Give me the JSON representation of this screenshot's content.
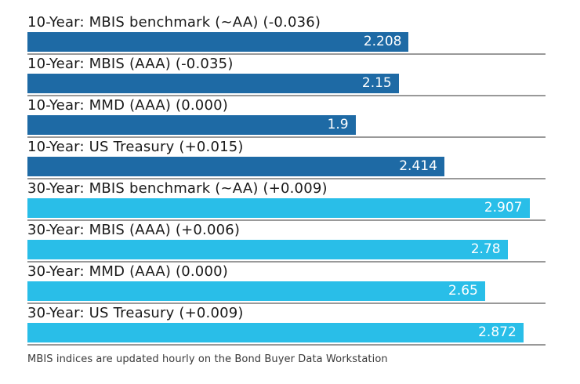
{
  "chart_data": {
    "type": "bar",
    "orientation": "horizontal",
    "title": "",
    "xlabel": "",
    "ylabel": "",
    "xlim": [
      0,
      3.0
    ],
    "grid": false,
    "legend": "none",
    "categories": [
      "10-Year: MBIS benchmark (~AA) (-0.036)",
      "10-Year: MBIS (AAA) (-0.035)",
      "10-Year: MMD (AAA) (0.000)",
      "10-Year: US Treasury (+0.015)",
      "30-Year: MBIS benchmark (~AA) (+0.009)",
      "30-Year: MBIS (AAA) (+0.006)",
      "30-Year: MMD (AAA) (0.000)",
      "30-Year: US Treasury (+0.009)"
    ],
    "values": [
      2.208,
      2.15,
      1.9,
      2.414,
      2.907,
      2.78,
      2.65,
      2.872
    ],
    "display_values": [
      "2.208",
      "2.15",
      "1.9",
      "2.414",
      "2.907",
      "2.78",
      "2.65",
      "2.872"
    ],
    "groups": [
      "10-year",
      "10-year",
      "10-year",
      "10-year",
      "30-year",
      "30-year",
      "30-year",
      "30-year"
    ],
    "colors": {
      "10-year": "#1e6aa5",
      "30-year": "#29bee8"
    },
    "value_label_color": "#ffffff",
    "separator_color": "#999999"
  },
  "footer": {
    "note": "MBIS indices are updated hourly on the Bond Buyer Data Workstation"
  }
}
